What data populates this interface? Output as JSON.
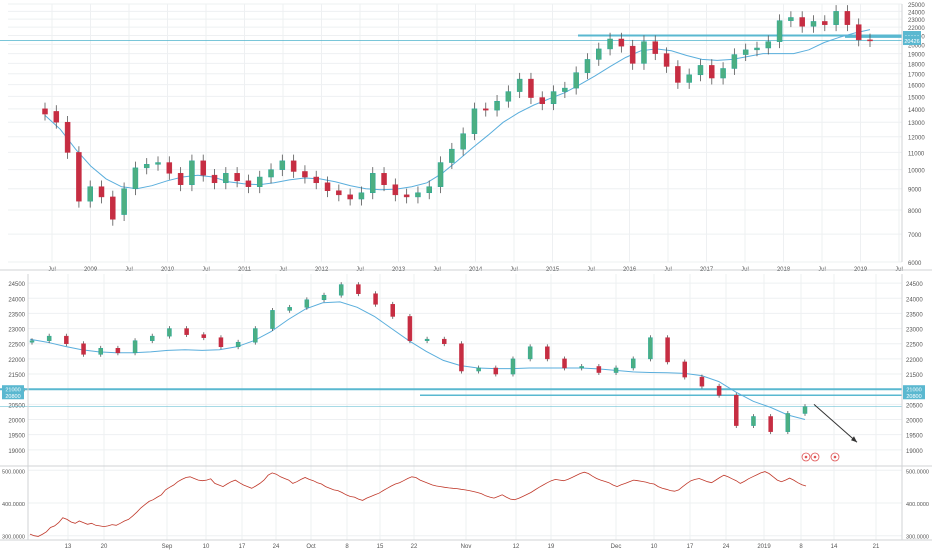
{
  "colors": {
    "up": "#26a69a",
    "up_fill": "#4caf82",
    "down": "#c62d42",
    "ma": "#5aaedc",
    "level": "#5ab8d0",
    "badge": "#5ab8d0",
    "volume": "#c0392b",
    "grid": "#eef0f2",
    "axis_text": "#555555",
    "arrow": "#333333",
    "alert": "#e05555"
  },
  "icons": {
    "alert": "circle-alert-icon",
    "arrow": "trend-arrow-icon"
  },
  "chart_data": [
    {
      "type": "candlestick",
      "title": "",
      "subtitle": "",
      "xlabel": "",
      "ylabel": "",
      "scale": "log",
      "ylim": [
        6000,
        25000
      ],
      "yticks": [
        6000,
        7000,
        8000,
        9000,
        10000,
        11000,
        12000,
        13000,
        14000,
        15000,
        16000,
        17000,
        18000,
        19000,
        20000,
        21000,
        22000,
        23000,
        24000,
        25000
      ],
      "xticks": [
        "Jul",
        "2009",
        "Jul",
        "2010",
        "Jul",
        "2011",
        "Jul",
        "2012",
        "Jul",
        "2013",
        "Jul",
        "2014",
        "Jul",
        "2015",
        "Jul",
        "2016",
        "Jul",
        "2017",
        "Jul",
        "2018",
        "Jul",
        "2019",
        "Jul"
      ],
      "price_badges": [
        "21000",
        "20820",
        "20426"
      ],
      "levels": [
        21000,
        20820
      ],
      "ma_series": [
        13500,
        12500,
        11200,
        10200,
        9500,
        9100,
        9000,
        9150,
        9400,
        9600,
        9700,
        9600,
        9350,
        9250,
        9200,
        9300,
        9450,
        9550,
        9500,
        9350,
        9150,
        9000,
        8950,
        8980,
        9100,
        9300,
        9800,
        10500,
        11300,
        12100,
        13000,
        13700,
        14300,
        14800,
        15300,
        16000,
        16800,
        17700,
        18600,
        19300,
        19500,
        19300,
        18800,
        18400,
        18300,
        18400,
        18700,
        19000,
        19000,
        19000,
        19400,
        20200,
        20800,
        21300,
        21700
      ],
      "candles": [
        [
          14000,
          13600
        ],
        [
          13800,
          13000
        ],
        [
          13000,
          11000
        ],
        [
          11000,
          8400
        ],
        [
          8400,
          9100
        ],
        [
          9100,
          8600
        ],
        [
          8600,
          7600
        ],
        [
          7800,
          9000
        ],
        [
          9000,
          10100
        ],
        [
          10100,
          10300
        ],
        [
          10300,
          10400
        ],
        [
          10400,
          9800
        ],
        [
          9800,
          9200
        ],
        [
          9200,
          10500
        ],
        [
          10500,
          9700
        ],
        [
          9700,
          9300
        ],
        [
          9300,
          9800
        ],
        [
          9800,
          9400
        ],
        [
          9400,
          9100
        ],
        [
          9100,
          9600
        ],
        [
          9600,
          10000
        ],
        [
          10000,
          10500
        ],
        [
          10500,
          9900
        ],
        [
          9900,
          9600
        ],
        [
          9600,
          9300
        ],
        [
          9300,
          8900
        ],
        [
          8900,
          8700
        ],
        [
          8700,
          8500
        ],
        [
          8500,
          8800
        ],
        [
          8800,
          9800
        ],
        [
          9800,
          9200
        ],
        [
          9200,
          8700
        ],
        [
          8700,
          8600
        ],
        [
          8600,
          8800
        ],
        [
          8800,
          9100
        ],
        [
          9100,
          10400
        ],
        [
          10400,
          11200
        ],
        [
          11200,
          12200
        ],
        [
          12200,
          14000
        ],
        [
          14000,
          13900
        ],
        [
          13900,
          14600
        ],
        [
          14600,
          15400
        ],
        [
          15400,
          16500
        ],
        [
          16500,
          14900
        ],
        [
          14900,
          14400
        ],
        [
          14400,
          15400
        ],
        [
          15400,
          15700
        ],
        [
          15700,
          17100
        ],
        [
          17100,
          18400
        ],
        [
          18400,
          19500
        ],
        [
          19500,
          20600
        ],
        [
          20600,
          19800
        ],
        [
          19800,
          18000
        ],
        [
          18000,
          20300
        ],
        [
          20300,
          19000
        ],
        [
          19000,
          17700
        ],
        [
          17700,
          16200
        ],
        [
          16200,
          16900
        ],
        [
          16900,
          17800
        ],
        [
          17800,
          16600
        ],
        [
          16600,
          17500
        ],
        [
          17500,
          18900
        ],
        [
          18900,
          19400
        ],
        [
          19400,
          19600
        ],
        [
          19600,
          20300
        ],
        [
          20300,
          22800
        ],
        [
          22800,
          23200
        ],
        [
          23200,
          22100
        ],
        [
          22100,
          22700
        ],
        [
          22700,
          22300
        ],
        [
          22300,
          24000
        ],
        [
          24000,
          22300
        ],
        [
          22300,
          20500
        ],
        [
          20500,
          20426
        ]
      ]
    },
    {
      "type": "candlestick",
      "title": "",
      "subtitle": "",
      "xlabel": "",
      "ylabel": "",
      "ylim": [
        18500,
        24800
      ],
      "yticks": [
        19000,
        19500,
        20000,
        20500,
        21000,
        21500,
        22000,
        22500,
        23000,
        23500,
        24000,
        24500
      ],
      "xticks": [
        "13",
        "20",
        "Sep",
        "10",
        "17",
        "24",
        "Oct",
        "8",
        "15",
        "22",
        "Nov",
        "12",
        "19",
        "Dec",
        "10",
        "17",
        "24",
        "2019",
        "8",
        "14",
        "21"
      ],
      "price_badges": [
        "21000",
        "20800"
      ],
      "levels": [
        21000,
        20800
      ],
      "ma_series": [
        22650,
        22550,
        22420,
        22300,
        22230,
        22200,
        22200,
        22230,
        22280,
        22300,
        22280,
        22300,
        22400,
        22600,
        22900,
        23300,
        23650,
        23850,
        23880,
        23700,
        23400,
        23000,
        22600,
        22250,
        21950,
        21780,
        21700,
        21680,
        21680,
        21700,
        21700,
        21700,
        21700,
        21670,
        21620,
        21570,
        21550,
        21540,
        21520,
        21450,
        21250,
        20900,
        20600,
        20400,
        20150,
        20000
      ],
      "candles": [
        [
          22550,
          22600
        ],
        [
          22600,
          22750
        ],
        [
          22750,
          22500
        ],
        [
          22500,
          22150
        ],
        [
          22150,
          22350
        ],
        [
          22350,
          22200
        ],
        [
          22200,
          22600
        ],
        [
          22600,
          22750
        ],
        [
          22750,
          23000
        ],
        [
          23000,
          22800
        ],
        [
          22800,
          22700
        ],
        [
          22700,
          22400
        ],
        [
          22400,
          22550
        ],
        [
          22550,
          23000
        ],
        [
          23000,
          23600
        ],
        [
          23600,
          23700
        ],
        [
          23700,
          23950
        ],
        [
          23950,
          24100
        ],
        [
          24100,
          24450
        ],
        [
          24450,
          24150
        ],
        [
          24150,
          23800
        ],
        [
          23800,
          23400
        ],
        [
          23400,
          22600
        ],
        [
          22600,
          22650
        ],
        [
          22650,
          22500
        ],
        [
          22500,
          21600
        ],
        [
          21600,
          21700
        ],
        [
          21700,
          21500
        ],
        [
          21500,
          22000
        ],
        [
          22000,
          22400
        ],
        [
          22400,
          22000
        ],
        [
          22000,
          21700
        ],
        [
          21700,
          21750
        ],
        [
          21750,
          21550
        ],
        [
          21550,
          21700
        ],
        [
          21700,
          22000
        ],
        [
          22000,
          22700
        ],
        [
          22700,
          21900
        ],
        [
          21900,
          21400
        ],
        [
          21400,
          21100
        ],
        [
          21100,
          20800
        ],
        [
          20800,
          19800
        ],
        [
          19800,
          20100
        ],
        [
          20100,
          19600
        ],
        [
          19600,
          20200
        ],
        [
          20200,
          20426
        ]
      ],
      "annotations": [
        "arrow pointing down-right toward about 19200"
      ]
    },
    {
      "type": "line",
      "title": "",
      "subtitle": "",
      "xlabel": "",
      "ylabel": "",
      "ylim": [
        290000,
        510000
      ],
      "yticks": [
        "500.0000",
        "400.0000",
        "300.0000"
      ],
      "series": [
        {
          "values": [
            305000,
            300000,
            298000,
            304000,
            312000,
            325000,
            330000,
            340000,
            355000,
            350000,
            342000,
            338000,
            345000,
            340000,
            335000,
            338000,
            332000,
            330000,
            328000,
            330000,
            334000,
            332000,
            338000,
            345000,
            350000,
            360000,
            372000,
            385000,
            395000,
            405000,
            410000,
            418000,
            425000,
            440000,
            448000,
            455000,
            465000,
            472000,
            478000,
            480000,
            475000,
            470000,
            468000,
            470000,
            474000,
            460000,
            455000,
            450000,
            458000,
            465000,
            470000,
            462000,
            455000,
            450000,
            445000,
            452000,
            460000,
            470000,
            485000,
            492000,
            488000,
            480000,
            475000,
            470000,
            460000,
            465000,
            472000,
            478000,
            472000,
            468000,
            462000,
            458000,
            450000,
            445000,
            440000,
            438000,
            432000,
            425000,
            420000,
            418000,
            412000,
            408000,
            415000,
            420000,
            425000,
            430000,
            438000,
            445000,
            452000,
            458000,
            462000,
            468000,
            475000,
            480000,
            478000,
            470000,
            465000,
            460000,
            455000,
            452000,
            450000,
            448000,
            446000,
            445000,
            444000,
            442000,
            440000,
            438000,
            435000,
            432000,
            428000,
            422000,
            418000,
            415000,
            420000,
            425000,
            418000,
            412000,
            410000,
            414000,
            420000,
            426000,
            432000,
            440000,
            448000,
            455000,
            462000,
            468000,
            472000,
            470000,
            468000,
            472000,
            478000,
            484000,
            490000,
            494000,
            490000,
            482000,
            475000,
            470000,
            466000,
            462000,
            455000,
            450000,
            456000,
            460000,
            465000,
            470000,
            468000,
            466000,
            464000,
            460000,
            458000,
            450000,
            445000,
            442000,
            438000,
            436000,
            440000,
            450000,
            460000,
            468000,
            472000,
            475000,
            470000,
            465000,
            462000,
            470000,
            478000,
            485000,
            480000,
            474000,
            468000,
            460000,
            466000,
            474000,
            480000,
            486000,
            492000,
            496000,
            490000,
            480000,
            470000,
            465000,
            470000,
            476000,
            470000,
            462000,
            456000,
            452000
          ]
        }
      ],
      "alert_markers": 3
    }
  ]
}
